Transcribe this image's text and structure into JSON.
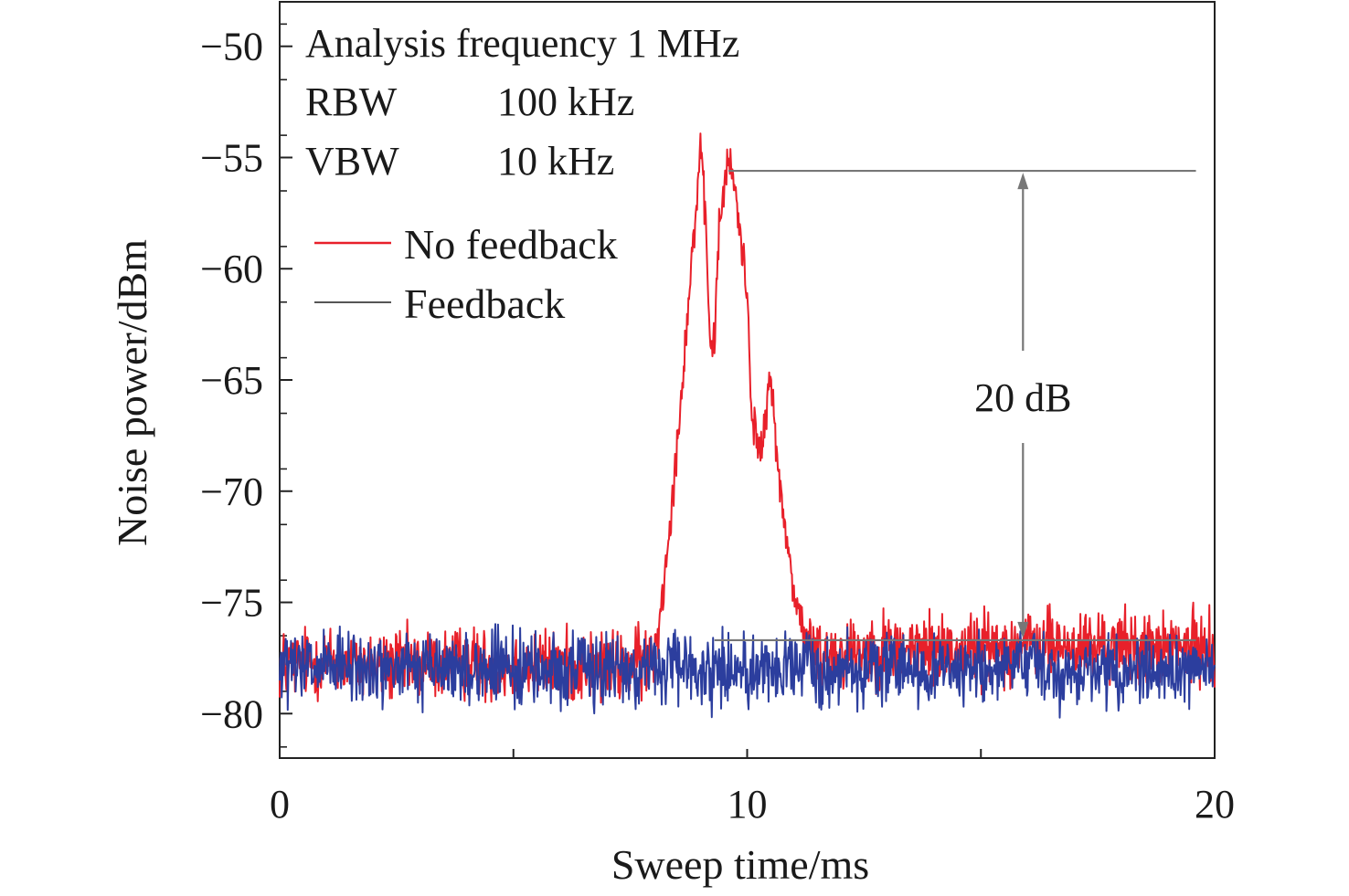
{
  "chart_data": {
    "type": "line",
    "xlabel": "Sweep time/ms",
    "ylabel": "Noise power/dBm",
    "xlim": [
      0,
      20
    ],
    "ylim": [
      -82,
      -48
    ],
    "xticks": [
      0,
      10,
      20
    ],
    "yticks": [
      -80,
      -75,
      -70,
      -65,
      -60,
      -55,
      -50
    ],
    "ytick_labels": [
      "−80",
      "−75",
      "−70",
      "−65",
      "−60",
      "−55",
      "−50"
    ],
    "grid": false,
    "legend_position": "upper-left",
    "info_lines": [
      {
        "label": "Analysis frequency 1 MHz",
        "value": ""
      },
      {
        "label": "RBW",
        "value": "100 kHz"
      },
      {
        "label": "VBW",
        "value": "10 kHz"
      }
    ],
    "annotations": {
      "difference_label": "20 dB",
      "peak_level": -55.6,
      "floor_level": -76.7,
      "marker_x": 15.9
    },
    "series": [
      {
        "name": "No feedback",
        "color": "#e8202a",
        "noise_floor": -77.8,
        "x": [
          0,
          1,
          2,
          3,
          4,
          5,
          6,
          7,
          7.6,
          8.0,
          8.2,
          8.5,
          8.8,
          9.0,
          9.1,
          9.2,
          9.3,
          9.4,
          9.5,
          9.6,
          9.7,
          9.8,
          10.0,
          10.1,
          10.3,
          10.4,
          10.5,
          10.6,
          10.7,
          10.9,
          11.0,
          11.2,
          11.4,
          12,
          13,
          14,
          15,
          16,
          17,
          18,
          19,
          20
        ],
        "y": [
          -77.8,
          -77.6,
          -77.9,
          -77.8,
          -77.7,
          -77.9,
          -77.8,
          -77.9,
          -77.8,
          -77.5,
          -74.5,
          -68.0,
          -60.0,
          -54.8,
          -57.5,
          -63.0,
          -63.5,
          -58.0,
          -56.5,
          -55.2,
          -55.8,
          -57.5,
          -61.0,
          -66.5,
          -68.5,
          -66.5,
          -65.0,
          -67.0,
          -70.0,
          -73.0,
          -74.5,
          -76.2,
          -77.3,
          -77.2,
          -77.0,
          -77.1,
          -77.0,
          -76.9,
          -77.0,
          -77.0,
          -77.1,
          -77.0
        ]
      },
      {
        "name": "Feedback",
        "color": "#2c3e9e",
        "noise_floor": -78.0,
        "x": [
          0,
          20
        ],
        "y": [
          -78.0,
          -78.0
        ]
      }
    ]
  }
}
